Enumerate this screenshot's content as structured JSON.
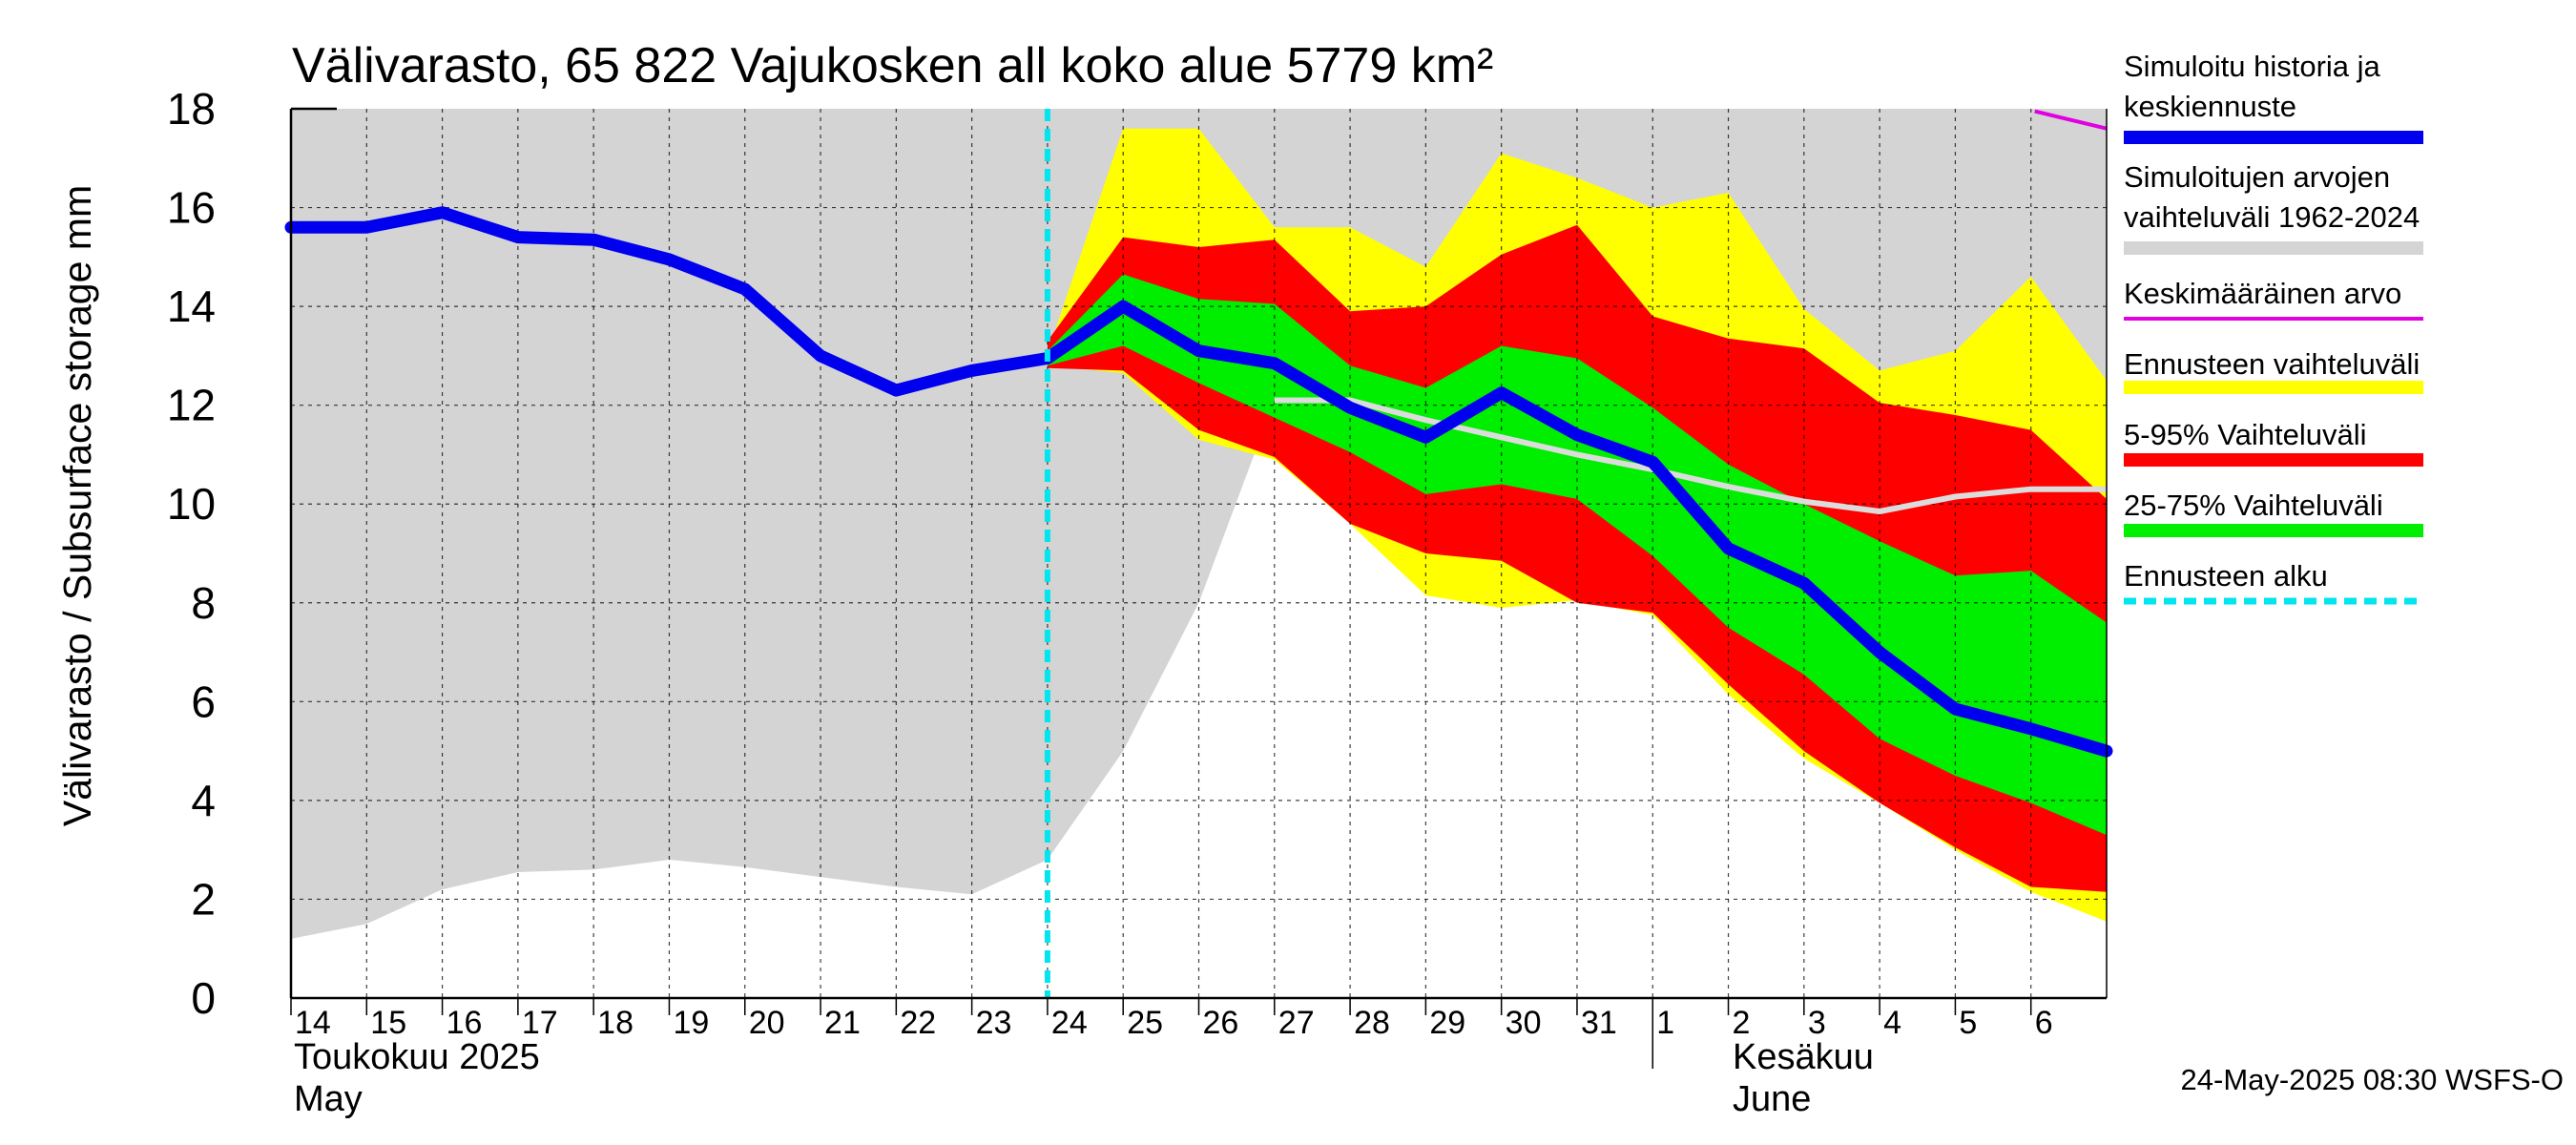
{
  "chart_data": {
    "type": "area",
    "title": "Välivarasto, 65 822 Vajukosken all koko alue 5779 km²",
    "ylabel": "Välivarasto / Subsurface storage  mm",
    "ylim": [
      0,
      18
    ],
    "yticks": [
      0,
      2,
      4,
      6,
      8,
      10,
      12,
      14,
      16,
      18
    ],
    "grid": true,
    "legend_placement": "right",
    "x_day_labels": [
      "14",
      "15",
      "16",
      "17",
      "18",
      "19",
      "20",
      "21",
      "22",
      "23",
      "24",
      "25",
      "26",
      "27",
      "28",
      "29",
      "30",
      "31",
      "1",
      "2",
      "3",
      "4",
      "5",
      "6"
    ],
    "month_labels": [
      {
        "fi": "Toukokuu  2025",
        "en": "May"
      },
      {
        "fi": "Kesäkuu",
        "en": "June"
      }
    ],
    "forecast_start_label": "24",
    "footer": "24-May-2025 08:30 WSFS-O",
    "colors": {
      "history_range": "#d4d4d4",
      "forecast_range": "#ffff00",
      "p5_95": "#ff0000",
      "p25_75": "#00ee00",
      "median": "#0000ee",
      "mean": "#e000e0",
      "forecast_start": "#00e5ee",
      "mean_in_forecast": "#dcdcdc"
    },
    "series": [
      {
        "name": "Simuloitu historia ja keskiennuste",
        "x": [
          0,
          1,
          2,
          3,
          4,
          5,
          6,
          7,
          8,
          9,
          10,
          11,
          12,
          13,
          14,
          15,
          16,
          17,
          18,
          19,
          20,
          21,
          22,
          23,
          24
        ],
        "values": [
          15.6,
          15.6,
          15.9,
          15.4,
          15.35,
          14.95,
          14.35,
          13.0,
          12.3,
          12.7,
          12.95,
          14.0,
          13.1,
          12.85,
          11.95,
          11.35,
          12.25,
          11.4,
          10.85,
          9.1,
          8.4,
          7.0,
          5.85,
          5.45,
          5.0
        ]
      },
      {
        "name": "Simuloitujen arvojen vaihteluväli 1962-2024",
        "x": [
          0,
          1,
          2,
          3,
          4,
          5,
          6,
          7,
          8,
          9,
          10,
          11,
          12,
          13,
          14,
          15,
          16,
          17,
          18,
          19,
          20,
          21,
          22,
          23,
          24
        ],
        "upper": [
          18,
          18,
          18,
          18,
          18,
          18,
          18,
          18,
          18,
          18,
          18,
          18,
          18,
          18,
          18,
          18,
          18,
          18,
          18,
          18,
          18,
          18,
          18,
          18,
          18
        ],
        "lower": [
          1.2,
          1.5,
          2.2,
          2.55,
          2.6,
          2.8,
          2.65,
          2.45,
          2.25,
          2.1,
          2.8,
          5.0,
          8.0,
          12.1,
          12.1,
          12.1,
          12.1,
          12.1,
          12.1,
          12.1,
          12.1,
          12.1,
          12.1,
          12.1,
          12.1
        ]
      },
      {
        "name": "Keskimääräinen arvo",
        "x": [
          23.05,
          24
        ],
        "values": [
          17.95,
          17.6
        ]
      },
      {
        "name": "Keskimääräinen arvo (ennustejakso)",
        "x": [
          13,
          14,
          15,
          16,
          17,
          18,
          19,
          20,
          21,
          22,
          23,
          24
        ],
        "values": [
          12.1,
          12.1,
          11.7,
          11.35,
          11.0,
          10.7,
          10.35,
          10.05,
          9.85,
          10.15,
          10.3,
          10.3
        ]
      },
      {
        "name": "Ennusteen vaihteluväli",
        "x": [
          10,
          11,
          12,
          13,
          14,
          15,
          16,
          17,
          18,
          19,
          20,
          21,
          22,
          23,
          24
        ],
        "upper": [
          13.05,
          17.6,
          17.6,
          15.6,
          15.6,
          14.8,
          17.1,
          16.6,
          16.0,
          16.3,
          13.95,
          12.7,
          13.1,
          14.6,
          12.5
        ],
        "lower": [
          12.8,
          12.65,
          11.3,
          10.9,
          9.6,
          8.15,
          7.9,
          8.05,
          7.75,
          6.15,
          4.85,
          3.95,
          3.0,
          2.15,
          1.55
        ]
      },
      {
        "name": "5-95% Vaihteluväli",
        "x": [
          10,
          11,
          12,
          13,
          14,
          15,
          16,
          17,
          18,
          19,
          20,
          21,
          22,
          23,
          24
        ],
        "upper": [
          13.3,
          15.4,
          15.2,
          15.35,
          13.9,
          14.0,
          15.05,
          15.65,
          13.8,
          13.35,
          13.15,
          12.05,
          11.8,
          11.5,
          10.1
        ],
        "lower": [
          12.75,
          12.7,
          11.5,
          10.95,
          9.6,
          9.0,
          8.85,
          8.0,
          7.8,
          6.35,
          5.0,
          3.95,
          3.05,
          2.25,
          2.15
        ]
      },
      {
        "name": "25-75% Vaihteluväli",
        "x": [
          10,
          11,
          12,
          13,
          14,
          15,
          16,
          17,
          18,
          19,
          20,
          21,
          22,
          23,
          24
        ],
        "upper": [
          13.1,
          14.65,
          14.15,
          14.05,
          12.8,
          12.35,
          13.2,
          12.95,
          11.95,
          10.8,
          10.0,
          9.25,
          8.55,
          8.65,
          7.6
        ],
        "lower": [
          12.8,
          13.2,
          12.45,
          11.75,
          11.05,
          10.2,
          10.4,
          10.1,
          8.95,
          7.5,
          6.55,
          5.25,
          4.5,
          3.95,
          3.3
        ]
      },
      {
        "name": "Ennusteen alku",
        "x": [
          10
        ]
      }
    ]
  },
  "legend": [
    {
      "label": "Simuloitu historia ja\nkeskiennuste",
      "color": "#0000ee",
      "style": "thick"
    },
    {
      "label": "Simuloitujen arvojen\nvaihteluväli 1962-2024",
      "color": "#d4d4d4",
      "style": "thick"
    },
    {
      "label": "Keskimääräinen arvo",
      "color": "#e000e0",
      "style": "thin"
    },
    {
      "label": "Ennusteen vaihteluväli",
      "color": "#ffff00",
      "style": "thick"
    },
    {
      "label": "5-95% Vaihteluväli",
      "color": "#ff0000",
      "style": "thick"
    },
    {
      "label": "25-75% Vaihteluväli",
      "color": "#00ee00",
      "style": "thick"
    },
    {
      "label": "Ennusteen alku",
      "color": "#00e5ee",
      "style": "dashed"
    }
  ]
}
